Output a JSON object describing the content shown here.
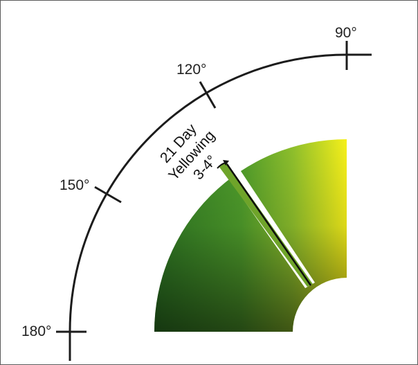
{
  "dial": {
    "ticks": [
      {
        "id": "90",
        "angle_deg": 90,
        "label": "90°"
      },
      {
        "id": "120",
        "angle_deg": 120,
        "label": "120°"
      },
      {
        "id": "150",
        "angle_deg": 150,
        "label": "150°"
      },
      {
        "id": "180",
        "angle_deg": 180,
        "label": "180°"
      }
    ]
  },
  "annotation": {
    "line1": "21 Day",
    "line2": "Yellowing",
    "shift": "3-4°"
  },
  "colors": {
    "arc": "#1c1c1c",
    "green_dark": "#1d4a1f",
    "green_mid": "#3f8f28",
    "green_light": "#7bbd30",
    "yellow": "#f6f01a",
    "wedge": "#6fa42a",
    "needle": "#0d0d0d"
  }
}
